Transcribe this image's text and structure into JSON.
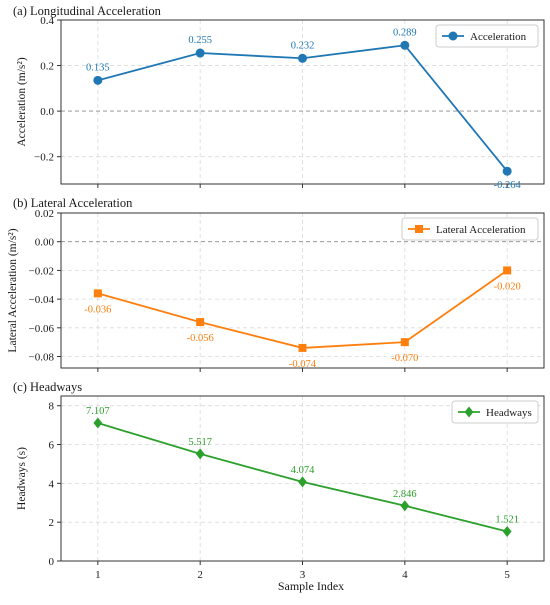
{
  "xlabel": "Sample Index",
  "chart_data": [
    {
      "type": "line",
      "title": "(a) Longitudinal Acceleration",
      "ylabel": "Acceleration (m/s²)",
      "x": [
        1,
        2,
        3,
        4,
        5
      ],
      "ylim": [
        -0.32,
        0.4
      ],
      "yticks": [
        -0.2,
        0.0,
        0.2,
        0.4
      ],
      "ytick_labels": [
        "−0.2",
        "0.0",
        "0.2",
        "0.4"
      ],
      "zero_line": true,
      "grid": true,
      "legend_position": "top-right",
      "series": [
        {
          "name": "Acceleration",
          "color": "#1f77b4",
          "marker": "circle",
          "values": [
            0.135,
            0.255,
            0.232,
            0.289,
            -0.264
          ],
          "labels": [
            "0.135",
            "0.255",
            "0.232",
            "0.289",
            "-0.264"
          ]
        }
      ]
    },
    {
      "type": "line",
      "title": "(b) Lateral Acceleration",
      "ylabel": "Lateral Acceleration (m/s²)",
      "x": [
        1,
        2,
        3,
        4,
        5
      ],
      "ylim": [
        -0.088,
        0.02
      ],
      "yticks": [
        -0.08,
        -0.06,
        -0.04,
        -0.02,
        0.0,
        0.02
      ],
      "ytick_labels": [
        "−0.08",
        "−0.06",
        "−0.04",
        "−0.02",
        "0.00",
        "0.02"
      ],
      "zero_line": true,
      "grid": true,
      "legend_position": "top-right",
      "series": [
        {
          "name": "Lateral Acceleration",
          "color": "#ff7f0e",
          "marker": "square",
          "values": [
            -0.036,
            -0.056,
            -0.074,
            -0.07,
            -0.02
          ],
          "labels": [
            "-0.036",
            "-0.056",
            "-0.074",
            "-0.070",
            "-0.020"
          ]
        }
      ]
    },
    {
      "type": "line",
      "title": "(c) Headways",
      "ylabel": "Headways (s)",
      "x": [
        1,
        2,
        3,
        4,
        5
      ],
      "xticks": [
        "1",
        "2",
        "3",
        "4",
        "5"
      ],
      "ylim": [
        0,
        8.5
      ],
      "yticks": [
        0,
        2,
        4,
        6,
        8
      ],
      "ytick_labels": [
        "0",
        "2",
        "4",
        "6",
        "8"
      ],
      "zero_line": false,
      "grid": true,
      "legend_position": "top-right",
      "series": [
        {
          "name": "Headways",
          "color": "#2ca02c",
          "marker": "diamond",
          "values": [
            7.107,
            5.517,
            4.074,
            2.846,
            1.521
          ],
          "labels": [
            "7.107",
            "5.517",
            "4.074",
            "2.846",
            "1.521"
          ]
        }
      ]
    }
  ]
}
